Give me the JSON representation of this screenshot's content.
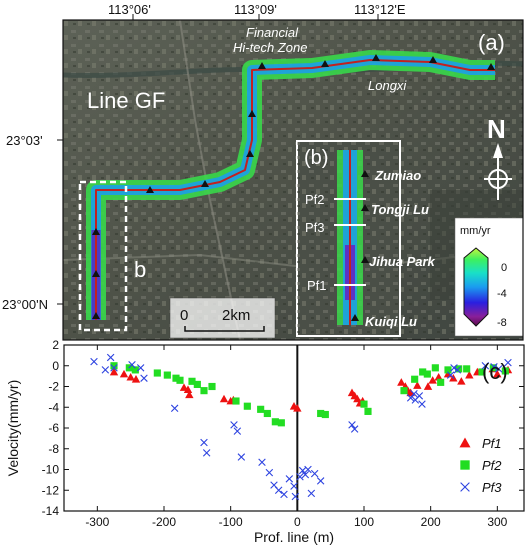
{
  "map": {
    "top_ticks": [
      "113°06'",
      "113°09'",
      "113°12'E"
    ],
    "left_ticks": [
      "23°03'",
      "23°00'N"
    ],
    "panel_a_label": "(a)",
    "line_label": "Line GF",
    "place_labels": {
      "financial_1": "Financial",
      "financial_2": "Hi-tech Zone",
      "longxi": "Longxi"
    },
    "inset_letter": "b",
    "scalebar": {
      "zero": "0",
      "distance": "2km"
    },
    "north": "N"
  },
  "inset": {
    "panel_label": "(b)",
    "stations": [
      "Zumiao",
      "Tongji Lu",
      "Jihua Park",
      "Kuiqi Lu"
    ],
    "profiles": [
      "Pf2",
      "Pf3",
      "Pf1"
    ]
  },
  "colorbar": {
    "unit": "mm/yr",
    "ticks": [
      "0",
      "-4",
      "-8"
    ],
    "range": [
      -9,
      1
    ],
    "colors": [
      "#5a0a4a",
      "#8a1f9a",
      "#2a1fe0",
      "#1a9cf0",
      "#19e0c8",
      "#3cf060",
      "#c6f53c"
    ]
  },
  "chart_data": {
    "type": "scatter",
    "panel_label": "(c)",
    "xlabel": "Prof. line (m)",
    "ylabel": "Velocity(mm/yr)",
    "xlim": [
      -350,
      340
    ],
    "ylim": [
      -14,
      2
    ],
    "xticks": [
      -300,
      -200,
      -100,
      0,
      100,
      200,
      300
    ],
    "yticks": [
      2,
      0,
      -2,
      -4,
      -6,
      -8,
      -10,
      -12,
      -14
    ],
    "legend_position": "bottom-right",
    "series": [
      {
        "name": "Pf1",
        "marker": "triangle",
        "color": "#ee1111",
        "points": [
          [
            -275,
            -0.6
          ],
          [
            -260,
            -0.8
          ],
          [
            -250,
            -1.1
          ],
          [
            -242,
            -1.3
          ],
          [
            -170,
            -2.1
          ],
          [
            -164,
            -2.3
          ],
          [
            -162,
            -2.8
          ],
          [
            -110,
            -3.2
          ],
          [
            -100,
            -3.4
          ],
          [
            -96,
            -3.3
          ],
          [
            -5,
            -3.9
          ],
          [
            0,
            -4.1
          ],
          [
            82,
            -2.6
          ],
          [
            86,
            -2.9
          ],
          [
            90,
            -3.2
          ],
          [
            94,
            -3.6
          ],
          [
            98,
            -3.4
          ],
          [
            156,
            -1.6
          ],
          [
            162,
            -2.0
          ],
          [
            166,
            -2.4
          ],
          [
            170,
            -2.6
          ],
          [
            180,
            -1.9
          ],
          [
            196,
            -2.0
          ],
          [
            203,
            -1.4
          ],
          [
            212,
            -1.1
          ],
          [
            226,
            -0.8
          ],
          [
            234,
            -1.2
          ],
          [
            246,
            -1.5
          ],
          [
            258,
            -0.9
          ],
          [
            270,
            -0.6
          ],
          [
            293,
            -0.3
          ],
          [
            300,
            -0.8
          ],
          [
            316,
            -0.4
          ]
        ]
      },
      {
        "name": "Pf2",
        "marker": "square",
        "color": "#22dd22",
        "points": [
          [
            -275,
            0.0
          ],
          [
            -252,
            -0.2
          ],
          [
            -243,
            -0.4
          ],
          [
            -210,
            -0.7
          ],
          [
            -195,
            -0.9
          ],
          [
            -182,
            -1.2
          ],
          [
            -176,
            -1.4
          ],
          [
            -158,
            -1.5
          ],
          [
            -150,
            -1.8
          ],
          [
            -140,
            -2.4
          ],
          [
            -128,
            -2.0
          ],
          [
            -92,
            -3.4
          ],
          [
            -75,
            -3.9
          ],
          [
            -55,
            -4.2
          ],
          [
            -45,
            -4.6
          ],
          [
            -33,
            -5.4
          ],
          [
            -24,
            -5.5
          ],
          [
            35,
            -4.6
          ],
          [
            42,
            -4.7
          ],
          [
            100,
            -3.7
          ],
          [
            106,
            -4.4
          ],
          [
            160,
            -2.4
          ],
          [
            176,
            -1.3
          ],
          [
            188,
            -0.6
          ],
          [
            195,
            -0.8
          ],
          [
            207,
            -0.2
          ],
          [
            215,
            -1.6
          ],
          [
            226,
            -0.4
          ],
          [
            242,
            -0.3
          ],
          [
            254,
            -0.3
          ],
          [
            277,
            -0.6
          ],
          [
            294,
            -0.2
          ],
          [
            312,
            -0.5
          ]
        ]
      },
      {
        "name": "Pf3",
        "marker": "x",
        "color": "#2d43e0",
        "points": [
          [
            -305,
            0.4
          ],
          [
            -288,
            -0.4
          ],
          [
            -280,
            0.8
          ],
          [
            -275,
            -0.2
          ],
          [
            -248,
            0.1
          ],
          [
            -235,
            -0.2
          ],
          [
            -230,
            -1.2
          ],
          [
            -184,
            -4.1
          ],
          [
            -140,
            -7.4
          ],
          [
            -136,
            -8.4
          ],
          [
            -95,
            -5.7
          ],
          [
            -90,
            -6.3
          ],
          [
            -84,
            -8.8
          ],
          [
            -53,
            -9.3
          ],
          [
            -42,
            -10.3
          ],
          [
            -35,
            -11.5
          ],
          [
            -28,
            -12.0
          ],
          [
            -20,
            -12.4
          ],
          [
            -12,
            -10.9
          ],
          [
            -5,
            -11.6
          ],
          [
            -3,
            -12.6
          ],
          [
            4,
            -10.7
          ],
          [
            8,
            -10.1
          ],
          [
            12,
            -10.5
          ],
          [
            16,
            -10.0
          ],
          [
            21,
            -12.3
          ],
          [
            26,
            -10.4
          ],
          [
            35,
            -11.1
          ],
          [
            82,
            -5.7
          ],
          [
            86,
            -6.1
          ],
          [
            170,
            -3.1
          ],
          [
            175,
            -2.7
          ],
          [
            177,
            -3.3
          ],
          [
            183,
            -2.9
          ],
          [
            187,
            -3.7
          ],
          [
            230,
            -0.9
          ],
          [
            235,
            -0.2
          ],
          [
            240,
            -0.4
          ],
          [
            282,
            0.0
          ],
          [
            295,
            -0.1
          ],
          [
            302,
            -0.3
          ],
          [
            316,
            0.3
          ]
        ]
      }
    ]
  }
}
